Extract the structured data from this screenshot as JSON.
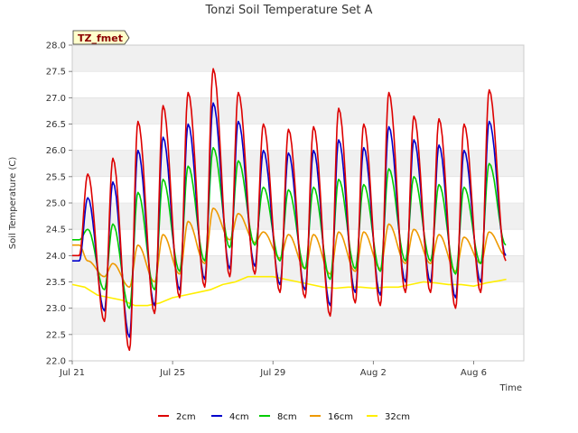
{
  "chart_data": {
    "type": "line",
    "title": "Tonzi Soil Temperature Set A",
    "xlabel": "Time",
    "ylabel": "Soil Temperature (C)",
    "station_label": "TZ_fmet",
    "ylim": [
      22.0,
      28.0
    ],
    "y_ticks": [
      "22.0",
      "22.5",
      "23.0",
      "23.5",
      "24.0",
      "24.5",
      "25.0",
      "25.5",
      "26.0",
      "26.5",
      "27.0",
      "27.5",
      "28.0"
    ],
    "xlim_days": [
      0,
      18
    ],
    "x_ticks": [
      {
        "label": "Jul 21",
        "day": 0
      },
      {
        "label": "Jul 25",
        "day": 4
      },
      {
        "label": "Jul 29",
        "day": 8
      },
      {
        "label": "Aug 2",
        "day": 12
      },
      {
        "label": "Aug 6",
        "day": 16
      }
    ],
    "grid": "alternating horizontal bands",
    "legend_position": "bottom",
    "series": [
      {
        "name": "2cm",
        "color": "#dd0000",
        "mins": [
          24.0,
          22.75,
          22.2,
          22.9,
          23.2,
          23.4,
          23.6,
          23.65,
          23.3,
          23.2,
          22.85,
          23.1,
          23.05,
          23.3,
          23.3,
          23.0,
          23.3,
          23.9,
          24.2
        ],
        "maxs": [
          25.55,
          25.85,
          26.55,
          26.85,
          27.1,
          27.55,
          27.1,
          26.5,
          26.4,
          26.45,
          26.8,
          26.5,
          27.1,
          26.65,
          26.6,
          26.5,
          27.15
        ]
      },
      {
        "name": "4cm",
        "color": "#0000cc",
        "mins": [
          23.9,
          22.95,
          22.45,
          23.05,
          23.35,
          23.55,
          23.75,
          23.8,
          23.45,
          23.35,
          23.05,
          23.3,
          23.25,
          23.5,
          23.5,
          23.2,
          23.5,
          24.0,
          24.3
        ],
        "maxs": [
          25.1,
          25.4,
          26.0,
          26.25,
          26.5,
          26.9,
          26.55,
          26.0,
          25.95,
          26.0,
          26.2,
          26.05,
          26.45,
          26.2,
          26.1,
          26.0,
          26.55
        ]
      },
      {
        "name": "8cm",
        "color": "#00cc00",
        "mins": [
          24.3,
          23.35,
          23.0,
          23.35,
          23.7,
          23.9,
          24.15,
          24.2,
          23.9,
          23.75,
          23.55,
          23.75,
          23.7,
          23.9,
          23.9,
          23.65,
          23.85,
          24.2,
          24.5
        ],
        "maxs": [
          24.5,
          24.6,
          25.2,
          25.45,
          25.7,
          26.05,
          25.8,
          25.3,
          25.25,
          25.3,
          25.45,
          25.35,
          25.65,
          25.5,
          25.35,
          25.3,
          25.75
        ]
      },
      {
        "name": "16cm",
        "color": "#ee9900",
        "mins": [
          24.2,
          23.6,
          23.4,
          23.5,
          23.65,
          23.85,
          24.3,
          24.25,
          23.95,
          23.75,
          23.65,
          23.7,
          23.75,
          23.85,
          23.85,
          23.7,
          23.85,
          24.0,
          24.3
        ],
        "maxs": [
          23.9,
          23.85,
          24.2,
          24.4,
          24.65,
          24.9,
          24.8,
          24.45,
          24.4,
          24.4,
          24.45,
          24.45,
          24.6,
          24.5,
          24.4,
          24.35,
          24.45,
          24.75
        ]
      },
      {
        "name": "32cm",
        "color": "#ffee00",
        "points": [
          [
            0,
            23.45
          ],
          [
            0.5,
            23.4
          ],
          [
            1,
            23.25
          ],
          [
            1.5,
            23.2
          ],
          [
            2,
            23.15
          ],
          [
            2.5,
            23.05
          ],
          [
            3,
            23.05
          ],
          [
            3.5,
            23.1
          ],
          [
            4,
            23.2
          ],
          [
            4.5,
            23.25
          ],
          [
            5,
            23.3
          ],
          [
            5.5,
            23.35
          ],
          [
            6,
            23.45
          ],
          [
            6.5,
            23.5
          ],
          [
            7,
            23.6
          ],
          [
            7.5,
            23.6
          ],
          [
            8,
            23.6
          ],
          [
            8.5,
            23.55
          ],
          [
            9,
            23.5
          ],
          [
            9.5,
            23.45
          ],
          [
            10,
            23.4
          ],
          [
            10.5,
            23.38
          ],
          [
            11,
            23.4
          ],
          [
            11.5,
            23.4
          ],
          [
            12,
            23.38
          ],
          [
            12.5,
            23.4
          ],
          [
            13,
            23.4
          ],
          [
            13.5,
            23.45
          ],
          [
            14,
            23.5
          ],
          [
            14.5,
            23.48
          ],
          [
            15,
            23.45
          ],
          [
            15.5,
            23.45
          ],
          [
            16,
            23.42
          ],
          [
            16.5,
            23.48
          ],
          [
            17,
            23.52
          ],
          [
            17.3,
            23.55
          ]
        ]
      }
    ]
  }
}
